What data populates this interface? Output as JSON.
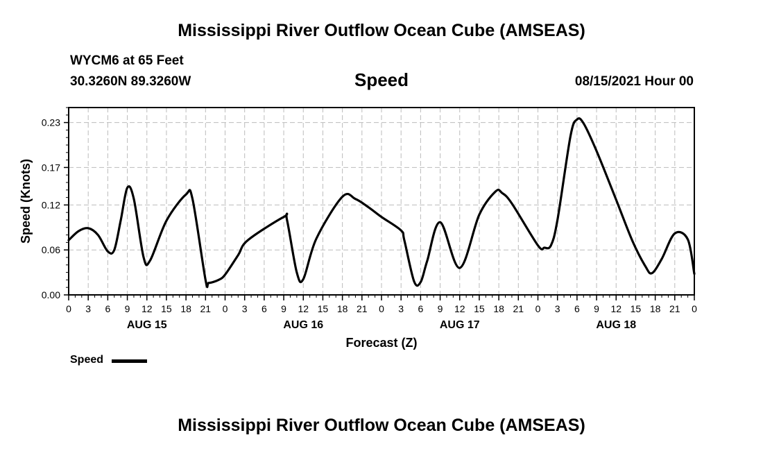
{
  "header": {
    "title": "Mississippi River Outflow Ocean Cube (AMSEAS)",
    "station": "WYCM6 at 65 Feet",
    "coordinates": "30.3260N  89.3260W",
    "variable": "Speed",
    "datetime": "08/15/2021 Hour 00"
  },
  "footer": {
    "title": "Mississippi River Outflow Ocean Cube (AMSEAS)"
  },
  "legend": {
    "label": "Speed"
  },
  "chart_data": {
    "type": "line",
    "xlabel": "Forecast (Z)",
    "ylabel": "Speed (Knots)",
    "ylim": [
      0,
      0.25
    ],
    "y_ticks": [
      "0.00",
      "0.06",
      "0.12",
      "0.17",
      "0.23"
    ],
    "y_tick_values": [
      0.0,
      0.06,
      0.12,
      0.17,
      0.23
    ],
    "x_range_hours": [
      0,
      96
    ],
    "x_tick_labels": [
      "0",
      "3",
      "6",
      "9",
      "12",
      "15",
      "18",
      "21",
      "0",
      "3",
      "6",
      "9",
      "12",
      "15",
      "18",
      "21",
      "0",
      "3",
      "6",
      "9",
      "12",
      "15",
      "18",
      "21",
      "0",
      "3",
      "6",
      "9",
      "12",
      "15",
      "18",
      "21",
      "0"
    ],
    "day_labels": [
      "AUG 15",
      "AUG 16",
      "AUG 17",
      "AUG 18"
    ],
    "day_label_hours": [
      12,
      36,
      60,
      84
    ],
    "grid": true,
    "series": [
      {
        "name": "Speed",
        "color": "#000000",
        "x": [
          0,
          1.5,
          3,
          4.5,
          6,
          7,
          8,
          9,
          10,
          11.5,
          12.5,
          15,
          18,
          19,
          21,
          21.5,
          23,
          24,
          26,
          27.5,
          33,
          33.5,
          35,
          36,
          38,
          42,
          44,
          46,
          48,
          51,
          51.5,
          53,
          54,
          55,
          57,
          60,
          63,
          65.5,
          66.5,
          68,
          72,
          73,
          74,
          75,
          77,
          78,
          79,
          81,
          84,
          86.5,
          88.5,
          89.5,
          91,
          93,
          95,
          96
        ],
        "y": [
          0.073,
          0.085,
          0.089,
          0.08,
          0.058,
          0.06,
          0.1,
          0.143,
          0.128,
          0.05,
          0.046,
          0.099,
          0.134,
          0.128,
          0.02,
          0.016,
          0.02,
          0.027,
          0.053,
          0.073,
          0.104,
          0.1,
          0.03,
          0.021,
          0.075,
          0.131,
          0.128,
          0.117,
          0.104,
          0.086,
          0.073,
          0.018,
          0.017,
          0.045,
          0.097,
          0.036,
          0.107,
          0.138,
          0.136,
          0.122,
          0.066,
          0.063,
          0.066,
          0.1,
          0.212,
          0.234,
          0.229,
          0.192,
          0.127,
          0.072,
          0.038,
          0.029,
          0.048,
          0.082,
          0.074,
          0.028
        ]
      }
    ]
  }
}
